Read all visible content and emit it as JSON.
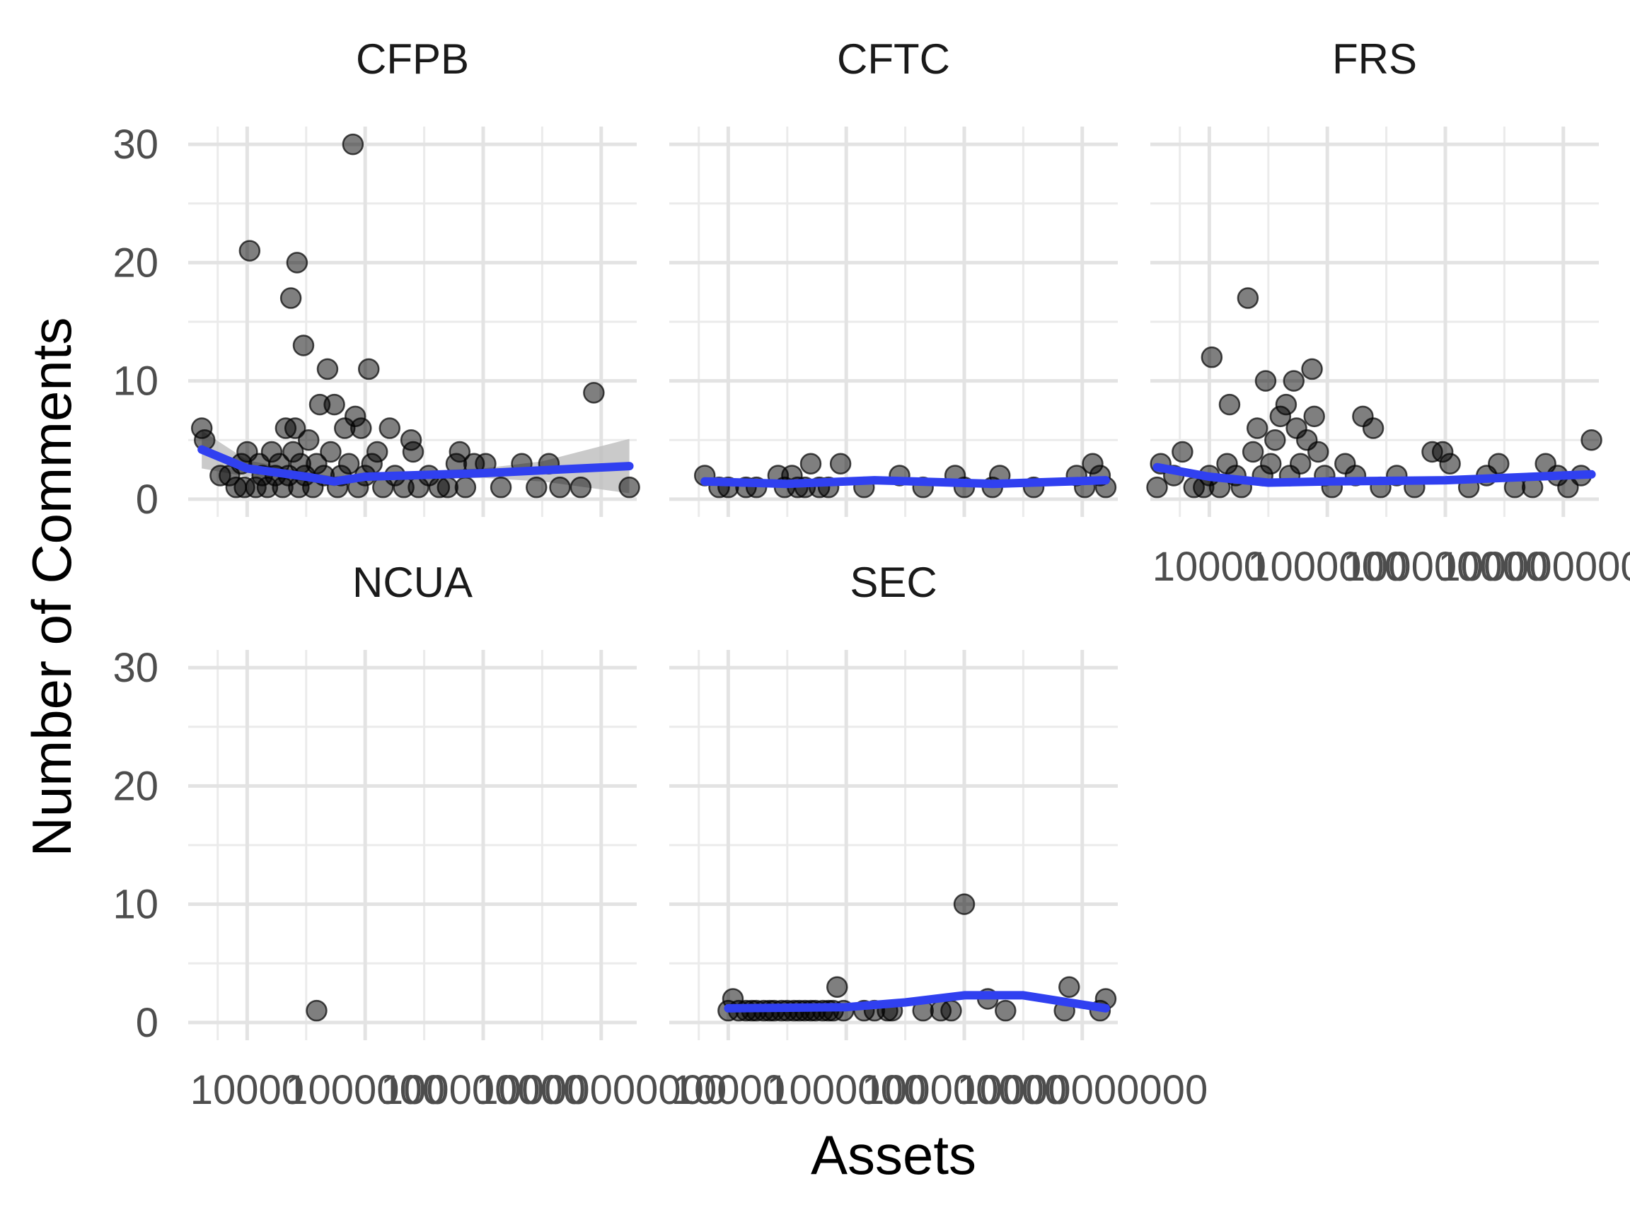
{
  "chart_data": {
    "type": "scatter",
    "facet_by": "agency",
    "xlabel": "Assets",
    "ylabel": "Number of Comments",
    "x_scale": "log10",
    "xlim": [
      1000,
      40000000000
    ],
    "ylim": [
      -1.5,
      31.5
    ],
    "x_ticks": [
      10000,
      1000000,
      100000000,
      10000000000
    ],
    "x_tick_labels": [
      "10000",
      "1000000",
      "100000000",
      "10000000000"
    ],
    "y_ticks": [
      0,
      10,
      20,
      30
    ],
    "y_tick_labels": [
      "0",
      "10",
      "20",
      "30"
    ],
    "grid": true,
    "point_color": "#000000",
    "point_alpha": 0.5,
    "smooth_color": "#3040f0",
    "ribbon_color": "#bdbdbd",
    "panels": [
      {
        "title": "CFPB",
        "points": [
          {
            "x": 1700,
            "y": 6
          },
          {
            "x": 1900,
            "y": 5
          },
          {
            "x": 3500,
            "y": 2
          },
          {
            "x": 5000,
            "y": 2
          },
          {
            "x": 6500,
            "y": 1
          },
          {
            "x": 8000,
            "y": 3
          },
          {
            "x": 9000,
            "y": 1
          },
          {
            "x": 10000,
            "y": 4
          },
          {
            "x": 11000,
            "y": 21
          },
          {
            "x": 14000,
            "y": 1
          },
          {
            "x": 16000,
            "y": 3
          },
          {
            "x": 18000,
            "y": 2
          },
          {
            "x": 22000,
            "y": 1
          },
          {
            "x": 26000,
            "y": 4
          },
          {
            "x": 30000,
            "y": 2
          },
          {
            "x": 35000,
            "y": 3
          },
          {
            "x": 40000,
            "y": 1
          },
          {
            "x": 45000,
            "y": 6
          },
          {
            "x": 50000,
            "y": 2
          },
          {
            "x": 55000,
            "y": 17
          },
          {
            "x": 60000,
            "y": 4
          },
          {
            "x": 65000,
            "y": 6
          },
          {
            "x": 70000,
            "y": 20
          },
          {
            "x": 75000,
            "y": 1
          },
          {
            "x": 80000,
            "y": 3
          },
          {
            "x": 90000,
            "y": 13
          },
          {
            "x": 95000,
            "y": 2
          },
          {
            "x": 110000,
            "y": 5
          },
          {
            "x": 130000,
            "y": 1
          },
          {
            "x": 150000,
            "y": 3
          },
          {
            "x": 170000,
            "y": 8
          },
          {
            "x": 200000,
            "y": 2
          },
          {
            "x": 230000,
            "y": 11
          },
          {
            "x": 260000,
            "y": 4
          },
          {
            "x": 300000,
            "y": 8
          },
          {
            "x": 340000,
            "y": 1
          },
          {
            "x": 390000,
            "y": 2
          },
          {
            "x": 450000,
            "y": 6
          },
          {
            "x": 530000,
            "y": 3
          },
          {
            "x": 620000,
            "y": 30
          },
          {
            "x": 680000,
            "y": 7
          },
          {
            "x": 760000,
            "y": 1
          },
          {
            "x": 850000,
            "y": 6
          },
          {
            "x": 1000000,
            "y": 2
          },
          {
            "x": 1150000,
            "y": 11
          },
          {
            "x": 1300000,
            "y": 3
          },
          {
            "x": 1600000,
            "y": 4
          },
          {
            "x": 2000000,
            "y": 1
          },
          {
            "x": 2600000,
            "y": 6
          },
          {
            "x": 3200000,
            "y": 2
          },
          {
            "x": 4500000,
            "y": 1
          },
          {
            "x": 6000000,
            "y": 5
          },
          {
            "x": 6500000,
            "y": 4
          },
          {
            "x": 8000000,
            "y": 1
          },
          {
            "x": 12000000,
            "y": 2
          },
          {
            "x": 18000000,
            "y": 1
          },
          {
            "x": 25000000,
            "y": 1
          },
          {
            "x": 35000000,
            "y": 3
          },
          {
            "x": 40000000,
            "y": 4
          },
          {
            "x": 50000000,
            "y": 1
          },
          {
            "x": 70000000,
            "y": 3
          },
          {
            "x": 110000000,
            "y": 3
          },
          {
            "x": 200000000,
            "y": 1
          },
          {
            "x": 450000000,
            "y": 3
          },
          {
            "x": 800000000,
            "y": 1
          },
          {
            "x": 1300000000,
            "y": 3
          },
          {
            "x": 2000000000,
            "y": 1
          },
          {
            "x": 4500000000,
            "y": 1
          },
          {
            "x": 7500000000,
            "y": 9
          },
          {
            "x": 30000000000,
            "y": 1
          }
        ],
        "smooth": [
          [
            1700,
            4.2
          ],
          [
            10000,
            2.6
          ],
          [
            100000,
            1.9
          ],
          [
            300000,
            1.5
          ],
          [
            1000000,
            1.9
          ],
          [
            100000000,
            2.2
          ],
          [
            30000000000,
            2.8
          ]
        ],
        "ribbon": [
          [
            1700,
            2.6,
            5.8
          ],
          [
            10000,
            1.9,
            3.3
          ],
          [
            100000,
            1.5,
            2.3
          ],
          [
            300000,
            1.1,
            1.9
          ],
          [
            1000000,
            1.6,
            2.2
          ],
          [
            100000000,
            1.8,
            2.6
          ],
          [
            1000000000,
            1.5,
            3.2
          ],
          [
            30000000000,
            0.5,
            5.1
          ]
        ]
      },
      {
        "title": "CFTC",
        "points": [
          {
            "x": 4000,
            "y": 2
          },
          {
            "x": 7000,
            "y": 1
          },
          {
            "x": 10000,
            "y": 1
          },
          {
            "x": 20000,
            "y": 1
          },
          {
            "x": 30000,
            "y": 1
          },
          {
            "x": 70000,
            "y": 2
          },
          {
            "x": 90000,
            "y": 1
          },
          {
            "x": 120000,
            "y": 2
          },
          {
            "x": 150000,
            "y": 1
          },
          {
            "x": 200000,
            "y": 1
          },
          {
            "x": 250000,
            "y": 3
          },
          {
            "x": 350000,
            "y": 1
          },
          {
            "x": 500000,
            "y": 1
          },
          {
            "x": 800000,
            "y": 3
          },
          {
            "x": 2000000,
            "y": 1
          },
          {
            "x": 8000000,
            "y": 2
          },
          {
            "x": 20000000,
            "y": 1
          },
          {
            "x": 70000000,
            "y": 2
          },
          {
            "x": 100000000,
            "y": 1
          },
          {
            "x": 300000000,
            "y": 1
          },
          {
            "x": 400000000,
            "y": 2
          },
          {
            "x": 1500000000,
            "y": 1
          },
          {
            "x": 8000000000,
            "y": 2
          },
          {
            "x": 11000000000,
            "y": 1
          },
          {
            "x": 15000000000,
            "y": 3
          },
          {
            "x": 20000000000,
            "y": 2
          },
          {
            "x": 25000000000,
            "y": 1
          }
        ],
        "smooth": [
          [
            4000,
            1.5
          ],
          [
            100000,
            1.3
          ],
          [
            3000000,
            1.6
          ],
          [
            300000000,
            1.3
          ],
          [
            25000000000,
            1.6
          ]
        ]
      },
      {
        "title": "FRS",
        "points": [
          {
            "x": 1300,
            "y": 1
          },
          {
            "x": 1500,
            "y": 3
          },
          {
            "x": 2500,
            "y": 2
          },
          {
            "x": 3500,
            "y": 4
          },
          {
            "x": 5500,
            "y": 1
          },
          {
            "x": 8000,
            "y": 1
          },
          {
            "x": 10000,
            "y": 2
          },
          {
            "x": 11000,
            "y": 12
          },
          {
            "x": 15000,
            "y": 1
          },
          {
            "x": 20000,
            "y": 3
          },
          {
            "x": 22000,
            "y": 8
          },
          {
            "x": 28000,
            "y": 2
          },
          {
            "x": 35000,
            "y": 1
          },
          {
            "x": 45000,
            "y": 17
          },
          {
            "x": 55000,
            "y": 4
          },
          {
            "x": 65000,
            "y": 6
          },
          {
            "x": 80000,
            "y": 2
          },
          {
            "x": 90000,
            "y": 10
          },
          {
            "x": 110000,
            "y": 3
          },
          {
            "x": 130000,
            "y": 5
          },
          {
            "x": 160000,
            "y": 7
          },
          {
            "x": 200000,
            "y": 8
          },
          {
            "x": 230000,
            "y": 2
          },
          {
            "x": 270000,
            "y": 10
          },
          {
            "x": 300000,
            "y": 6
          },
          {
            "x": 350000,
            "y": 3
          },
          {
            "x": 450000,
            "y": 5
          },
          {
            "x": 550000,
            "y": 11
          },
          {
            "x": 600000,
            "y": 7
          },
          {
            "x": 700000,
            "y": 4
          },
          {
            "x": 900000,
            "y": 2
          },
          {
            "x": 1200000,
            "y": 1
          },
          {
            "x": 2000000,
            "y": 3
          },
          {
            "x": 3000000,
            "y": 2
          },
          {
            "x": 4000000,
            "y": 7
          },
          {
            "x": 6000000,
            "y": 6
          },
          {
            "x": 8000000,
            "y": 1
          },
          {
            "x": 15000000,
            "y": 2
          },
          {
            "x": 30000000,
            "y": 1
          },
          {
            "x": 60000000,
            "y": 4
          },
          {
            "x": 90000000,
            "y": 4
          },
          {
            "x": 120000000,
            "y": 3
          },
          {
            "x": 250000000,
            "y": 1
          },
          {
            "x": 500000000,
            "y": 2
          },
          {
            "x": 800000000,
            "y": 3
          },
          {
            "x": 1500000000,
            "y": 1
          },
          {
            "x": 3000000000,
            "y": 1
          },
          {
            "x": 5000000000,
            "y": 3
          },
          {
            "x": 8000000000,
            "y": 2
          },
          {
            "x": 12000000000,
            "y": 1
          },
          {
            "x": 20000000000,
            "y": 2
          },
          {
            "x": 30000000000,
            "y": 5
          }
        ],
        "smooth": [
          [
            1300,
            2.7
          ],
          [
            10000,
            1.9
          ],
          [
            100000,
            1.4
          ],
          [
            1000000,
            1.5
          ],
          [
            100000000,
            1.6
          ],
          [
            30000000000,
            2.1
          ]
        ]
      },
      {
        "title": "NCUA",
        "points": [
          {
            "x": 150000,
            "y": 1
          }
        ],
        "smooth": []
      },
      {
        "title": "SEC",
        "points": [
          {
            "x": 10000,
            "y": 1
          },
          {
            "x": 12000,
            "y": 2
          },
          {
            "x": 15000,
            "y": 1
          },
          {
            "x": 20000,
            "y": 1
          },
          {
            "x": 25000,
            "y": 1
          },
          {
            "x": 30000,
            "y": 1
          },
          {
            "x": 40000,
            "y": 1
          },
          {
            "x": 50000,
            "y": 1
          },
          {
            "x": 60000,
            "y": 1
          },
          {
            "x": 80000,
            "y": 1
          },
          {
            "x": 100000,
            "y": 1
          },
          {
            "x": 130000,
            "y": 1
          },
          {
            "x": 160000,
            "y": 1
          },
          {
            "x": 200000,
            "y": 1
          },
          {
            "x": 250000,
            "y": 1
          },
          {
            "x": 300000,
            "y": 1
          },
          {
            "x": 400000,
            "y": 1
          },
          {
            "x": 500000,
            "y": 1
          },
          {
            "x": 600000,
            "y": 1
          },
          {
            "x": 700000,
            "y": 3
          },
          {
            "x": 900000,
            "y": 1
          },
          {
            "x": 2000000,
            "y": 1
          },
          {
            "x": 3000000,
            "y": 1
          },
          {
            "x": 5000000,
            "y": 1
          },
          {
            "x": 6000000,
            "y": 1
          },
          {
            "x": 20000000,
            "y": 1
          },
          {
            "x": 40000000,
            "y": 1
          },
          {
            "x": 60000000,
            "y": 1
          },
          {
            "x": 100000000,
            "y": 10
          },
          {
            "x": 250000000,
            "y": 2
          },
          {
            "x": 500000000,
            "y": 1
          },
          {
            "x": 5000000000,
            "y": 1
          },
          {
            "x": 6000000000,
            "y": 3
          },
          {
            "x": 20000000000,
            "y": 1
          },
          {
            "x": 25000000000,
            "y": 2
          }
        ],
        "smooth": [
          [
            10000,
            1.2
          ],
          [
            1000000,
            1.3
          ],
          [
            10000000,
            1.7
          ],
          [
            100000000,
            2.3
          ],
          [
            1000000000,
            2.3
          ],
          [
            25000000000,
            1.2
          ]
        ]
      }
    ]
  }
}
